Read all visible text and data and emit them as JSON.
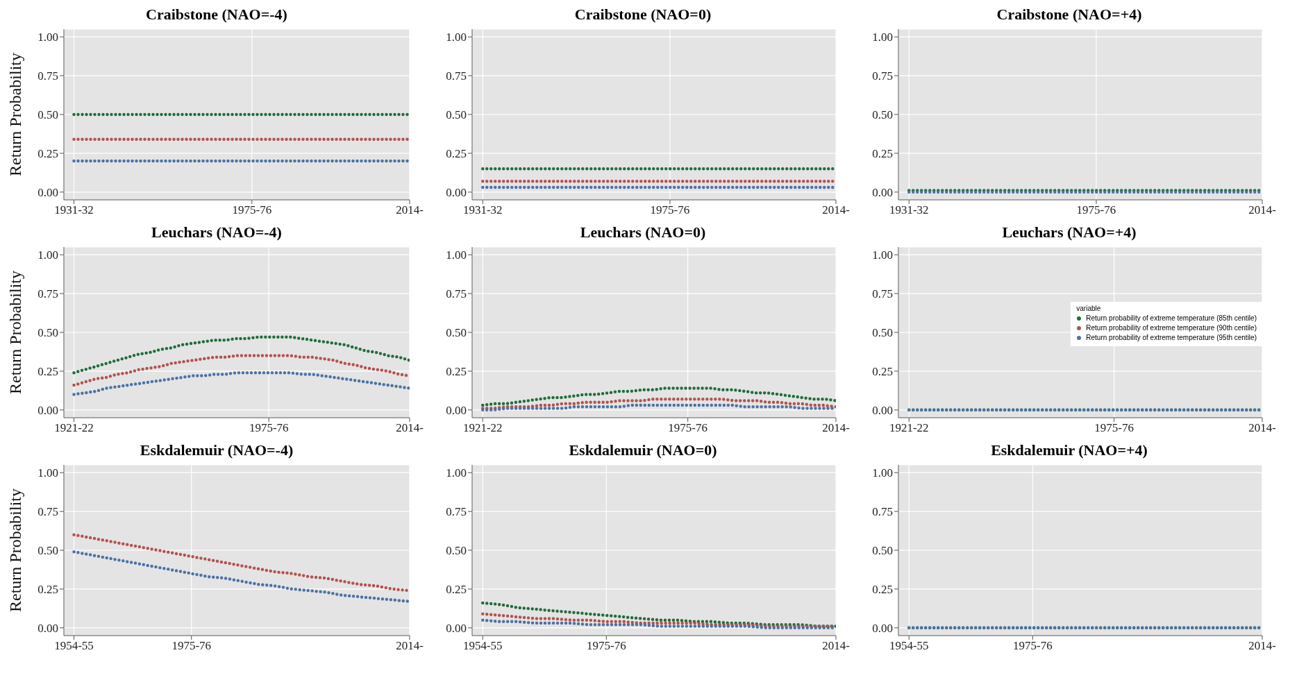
{
  "chart_data": [
    {
      "type": "line",
      "title": "Craibstone (NAO=-4)",
      "ylabel": "Return Probability",
      "line_style": "dotted",
      "grid": true,
      "ylim": [
        -0.05,
        1.05
      ],
      "yticks": [
        {
          "value": 0,
          "label": "0.00"
        },
        {
          "value": 0.25,
          "label": "0.25"
        },
        {
          "value": 0.5,
          "label": "0.50"
        },
        {
          "value": 0.75,
          "label": "0.75"
        },
        {
          "value": 1,
          "label": "1.00"
        }
      ],
      "categories": [
        "1931-32",
        null,
        null,
        null,
        null,
        null,
        null,
        null,
        null,
        null,
        null,
        null,
        null,
        null,
        null,
        null,
        null,
        null,
        null,
        null,
        null,
        null,
        null,
        null,
        null,
        null,
        null,
        null,
        null,
        null,
        null,
        null,
        null,
        null,
        null,
        null,
        null,
        null,
        null,
        null,
        null,
        null,
        null,
        null,
        "1975-76",
        null,
        null,
        null,
        null,
        null,
        null,
        null,
        null,
        null,
        null,
        null,
        null,
        null,
        null,
        null,
        null,
        null,
        null,
        null,
        null,
        null,
        null,
        null,
        null,
        null,
        null,
        null,
        null,
        null,
        null,
        null,
        null,
        null,
        null,
        null,
        null,
        null,
        null,
        "2014-"
      ],
      "series": [
        {
          "color": "#1f6e3a",
          "values": [
            0.5,
            0.5,
            0.5,
            0.5,
            0.5,
            0.5,
            0.5,
            0.5,
            0.5,
            0.5,
            0.5,
            0.5,
            0.5,
            0.5,
            0.5,
            0.5,
            0.5,
            0.5,
            0.5,
            0.5,
            0.5,
            0.5,
            0.5,
            0.5,
            0.5,
            0.5,
            0.5,
            0.5,
            0.5,
            0.5,
            0.5,
            0.5,
            0.5,
            0.5,
            0.5,
            0.5,
            0.5,
            0.5,
            0.5,
            0.5,
            0.5,
            0.5,
            0.5,
            0.5,
            0.5,
            0.5,
            0.5,
            0.5,
            0.5,
            0.5,
            0.5,
            0.5,
            0.5,
            0.5,
            0.5,
            0.5,
            0.5,
            0.5,
            0.5,
            0.5,
            0.5,
            0.5,
            0.5,
            0.5,
            0.5,
            0.5,
            0.5,
            0.5,
            0.5,
            0.5,
            0.5,
            0.5,
            0.5,
            0.5,
            0.5,
            0.5,
            0.5,
            0.5,
            0.5,
            0.5,
            0.5,
            0.5,
            0.5,
            0.5
          ]
        },
        {
          "color": "#b3524e",
          "values": [
            0.34,
            0.34,
            0.34,
            0.34,
            0.34,
            0.34,
            0.34,
            0.34,
            0.34,
            0.34,
            0.34,
            0.34,
            0.34,
            0.34,
            0.34,
            0.34,
            0.34,
            0.34,
            0.34,
            0.34,
            0.34,
            0.34,
            0.34,
            0.34,
            0.34,
            0.34,
            0.34,
            0.34,
            0.34,
            0.34,
            0.34,
            0.34,
            0.34,
            0.34,
            0.34,
            0.34,
            0.34,
            0.34,
            0.34,
            0.34,
            0.34,
            0.34,
            0.34,
            0.34,
            0.34,
            0.34,
            0.34,
            0.34,
            0.34,
            0.34,
            0.34,
            0.34,
            0.34,
            0.34,
            0.34,
            0.34,
            0.34,
            0.34,
            0.34,
            0.34,
            0.34,
            0.34,
            0.34,
            0.34,
            0.34,
            0.34,
            0.34,
            0.34,
            0.34,
            0.34,
            0.34,
            0.34,
            0.34,
            0.34,
            0.34,
            0.34,
            0.34,
            0.34,
            0.34,
            0.34,
            0.34,
            0.34,
            0.34,
            0.34
          ]
        },
        {
          "color": "#4a72a6",
          "values": [
            0.2,
            0.2,
            0.2,
            0.2,
            0.2,
            0.2,
            0.2,
            0.2,
            0.2,
            0.2,
            0.2,
            0.2,
            0.2,
            0.2,
            0.2,
            0.2,
            0.2,
            0.2,
            0.2,
            0.2,
            0.2,
            0.2,
            0.2,
            0.2,
            0.2,
            0.2,
            0.2,
            0.2,
            0.2,
            0.2,
            0.2,
            0.2,
            0.2,
            0.2,
            0.2,
            0.2,
            0.2,
            0.2,
            0.2,
            0.2,
            0.2,
            0.2,
            0.2,
            0.2,
            0.2,
            0.2,
            0.2,
            0.2,
            0.2,
            0.2,
            0.2,
            0.2,
            0.2,
            0.2,
            0.2,
            0.2,
            0.2,
            0.2,
            0.2,
            0.2,
            0.2,
            0.2,
            0.2,
            0.2,
            0.2,
            0.2,
            0.2,
            0.2,
            0.2,
            0.2,
            0.2,
            0.2,
            0.2,
            0.2,
            0.2,
            0.2,
            0.2,
            0.2,
            0.2,
            0.2,
            0.2,
            0.2,
            0.2,
            0.2
          ]
        }
      ]
    },
    {
      "type": "line",
      "title": "Craibstone (NAO=0)",
      "line_style": "dotted",
      "grid": true,
      "ylim": [
        -0.05,
        1.05
      ],
      "yticks": [
        {
          "value": 0,
          "label": "0.00"
        },
        {
          "value": 0.25,
          "label": "0.25"
        },
        {
          "value": 0.5,
          "label": "0.50"
        },
        {
          "value": 0.75,
          "label": "0.75"
        },
        {
          "value": 1,
          "label": "1.00"
        }
      ],
      "categories": [
        "1931-32",
        null,
        null,
        null,
        null,
        null,
        null,
        null,
        null,
        null,
        null,
        null,
        null,
        null,
        null,
        null,
        null,
        null,
        null,
        null,
        null,
        null,
        null,
        null,
        null,
        null,
        null,
        null,
        null,
        null,
        null,
        null,
        null,
        null,
        null,
        null,
        null,
        null,
        null,
        null,
        null,
        null,
        null,
        null,
        "1975-76",
        null,
        null,
        null,
        null,
        null,
        null,
        null,
        null,
        null,
        null,
        null,
        null,
        null,
        null,
        null,
        null,
        null,
        null,
        null,
        null,
        null,
        null,
        null,
        null,
        null,
        null,
        null,
        null,
        null,
        null,
        null,
        null,
        null,
        null,
        null,
        null,
        null,
        null,
        "2014-"
      ],
      "series": [
        {
          "color": "#1f6e3a",
          "values": [
            0.15,
            0.15,
            0.15,
            0.15,
            0.15,
            0.15,
            0.15,
            0.15,
            0.15,
            0.15,
            0.15,
            0.15,
            0.15,
            0.15,
            0.15,
            0.15,
            0.15,
            0.15,
            0.15,
            0.15,
            0.15,
            0.15,
            0.15,
            0.15,
            0.15,
            0.15,
            0.15,
            0.15,
            0.15,
            0.15,
            0.15,
            0.15,
            0.15,
            0.15,
            0.15,
            0.15,
            0.15,
            0.15,
            0.15,
            0.15,
            0.15,
            0.15,
            0.15,
            0.15,
            0.15,
            0.15,
            0.15,
            0.15,
            0.15,
            0.15,
            0.15,
            0.15,
            0.15,
            0.15,
            0.15,
            0.15,
            0.15,
            0.15,
            0.15,
            0.15,
            0.15,
            0.15,
            0.15,
            0.15,
            0.15,
            0.15,
            0.15,
            0.15,
            0.15,
            0.15,
            0.15,
            0.15,
            0.15,
            0.15,
            0.15,
            0.15,
            0.15,
            0.15,
            0.15,
            0.15,
            0.15,
            0.15,
            0.15,
            0.15
          ]
        },
        {
          "color": "#b3524e",
          "values": [
            0.07,
            0.07,
            0.07,
            0.07,
            0.07,
            0.07,
            0.07,
            0.07,
            0.07,
            0.07,
            0.07,
            0.07,
            0.07,
            0.07,
            0.07,
            0.07,
            0.07,
            0.07,
            0.07,
            0.07,
            0.07,
            0.07,
            0.07,
            0.07,
            0.07,
            0.07,
            0.07,
            0.07,
            0.07,
            0.07,
            0.07,
            0.07,
            0.07,
            0.07,
            0.07,
            0.07,
            0.07,
            0.07,
            0.07,
            0.07,
            0.07,
            0.07,
            0.07,
            0.07,
            0.07,
            0.07,
            0.07,
            0.07,
            0.07,
            0.07,
            0.07,
            0.07,
            0.07,
            0.07,
            0.07,
            0.07,
            0.07,
            0.07,
            0.07,
            0.07,
            0.07,
            0.07,
            0.07,
            0.07,
            0.07,
            0.07,
            0.07,
            0.07,
            0.07,
            0.07,
            0.07,
            0.07,
            0.07,
            0.07,
            0.07,
            0.07,
            0.07,
            0.07,
            0.07,
            0.07,
            0.07,
            0.07,
            0.07,
            0.07
          ]
        },
        {
          "color": "#4a72a6",
          "values": [
            0.03,
            0.03,
            0.03,
            0.03,
            0.03,
            0.03,
            0.03,
            0.03,
            0.03,
            0.03,
            0.03,
            0.03,
            0.03,
            0.03,
            0.03,
            0.03,
            0.03,
            0.03,
            0.03,
            0.03,
            0.03,
            0.03,
            0.03,
            0.03,
            0.03,
            0.03,
            0.03,
            0.03,
            0.03,
            0.03,
            0.03,
            0.03,
            0.03,
            0.03,
            0.03,
            0.03,
            0.03,
            0.03,
            0.03,
            0.03,
            0.03,
            0.03,
            0.03,
            0.03,
            0.03,
            0.03,
            0.03,
            0.03,
            0.03,
            0.03,
            0.03,
            0.03,
            0.03,
            0.03,
            0.03,
            0.03,
            0.03,
            0.03,
            0.03,
            0.03,
            0.03,
            0.03,
            0.03,
            0.03,
            0.03,
            0.03,
            0.03,
            0.03,
            0.03,
            0.03,
            0.03,
            0.03,
            0.03,
            0.03,
            0.03,
            0.03,
            0.03,
            0.03,
            0.03,
            0.03,
            0.03,
            0.03,
            0.03,
            0.03
          ]
        }
      ]
    },
    {
      "type": "line",
      "title": "Craibstone (NAO=+4)",
      "line_style": "dotted",
      "grid": true,
      "ylim": [
        -0.05,
        1.05
      ],
      "yticks": [
        {
          "value": 0,
          "label": "0.00"
        },
        {
          "value": 0.25,
          "label": "0.25"
        },
        {
          "value": 0.5,
          "label": "0.50"
        },
        {
          "value": 0.75,
          "label": "0.75"
        },
        {
          "value": 1,
          "label": "1.00"
        }
      ],
      "categories": [
        "1931-32",
        null,
        null,
        null,
        null,
        null,
        null,
        null,
        null,
        null,
        null,
        null,
        null,
        null,
        null,
        null,
        null,
        null,
        null,
        null,
        null,
        null,
        null,
        null,
        null,
        null,
        null,
        null,
        null,
        null,
        null,
        null,
        null,
        null,
        null,
        null,
        null,
        null,
        null,
        null,
        null,
        null,
        null,
        null,
        "1975-76",
        null,
        null,
        null,
        null,
        null,
        null,
        null,
        null,
        null,
        null,
        null,
        null,
        null,
        null,
        null,
        null,
        null,
        null,
        null,
        null,
        null,
        null,
        null,
        null,
        null,
        null,
        null,
        null,
        null,
        null,
        null,
        null,
        null,
        null,
        null,
        null,
        null,
        null,
        "2014-"
      ],
      "series": [
        {
          "color": "#1f6e3a",
          "values": [
            0.01,
            0.01,
            0.01,
            0.01,
            0.01,
            0.01,
            0.01,
            0.01,
            0.01,
            0.01,
            0.01,
            0.01,
            0.01,
            0.01,
            0.01,
            0.01,
            0.01,
            0.01,
            0.01,
            0.01,
            0.01,
            0.01,
            0.01,
            0.01,
            0.01,
            0.01,
            0.01,
            0.01,
            0.01,
            0.01,
            0.01,
            0.01,
            0.01,
            0.01,
            0.01,
            0.01,
            0.01,
            0.01,
            0.01,
            0.01,
            0.01,
            0.01,
            0.01,
            0.01,
            0.01,
            0.01,
            0.01,
            0.01,
            0.01,
            0.01,
            0.01,
            0.01,
            0.01,
            0.01,
            0.01,
            0.01,
            0.01,
            0.01,
            0.01,
            0.01,
            0.01,
            0.01,
            0.01,
            0.01,
            0.01,
            0.01,
            0.01,
            0.01,
            0.01,
            0.01,
            0.01,
            0.01,
            0.01,
            0.01,
            0.01,
            0.01,
            0.01,
            0.01,
            0.01,
            0.01,
            0.01,
            0.01,
            0.01,
            0.01
          ]
        },
        {
          "color": "#b3524e",
          "values": [
            null,
            null,
            null,
            null,
            null,
            null,
            null,
            null,
            null,
            null,
            null,
            null,
            null,
            null,
            null,
            null,
            null,
            null,
            null,
            null,
            null,
            null,
            null,
            null,
            null,
            null,
            null,
            null,
            null,
            null,
            null,
            null,
            null,
            null,
            null,
            null,
            null,
            null,
            null,
            null,
            null,
            null,
            null,
            null,
            null,
            null,
            null,
            null,
            null,
            null,
            null,
            null,
            null,
            null,
            null,
            null,
            null,
            null,
            null,
            null,
            null,
            null,
            null,
            null,
            null,
            null,
            null,
            null,
            null,
            null,
            null,
            null,
            null,
            null,
            null,
            null,
            null,
            null,
            null,
            null,
            null,
            null,
            null,
            null
          ]
        },
        {
          "color": "#4a72a6",
          "values": [
            0,
            0,
            0,
            0,
            0,
            0,
            0,
            0,
            0,
            0,
            0,
            0,
            0,
            0,
            0,
            0,
            0,
            0,
            0,
            0,
            0,
            0,
            0,
            0,
            0,
            0,
            0,
            0,
            0,
            0,
            0,
            0,
            0,
            0,
            0,
            0,
            0,
            0,
            0,
            0,
            0,
            0,
            0,
            0,
            0,
            0,
            0,
            0,
            0,
            0,
            0,
            0,
            0,
            0,
            0,
            0,
            0,
            0,
            0,
            0,
            0,
            0,
            0,
            0,
            0,
            0,
            0,
            0,
            0,
            0,
            0,
            0,
            0,
            0,
            0,
            0,
            0,
            0,
            0,
            0,
            0,
            0,
            0,
            0
          ]
        }
      ]
    },
    {
      "type": "line",
      "title": "Leuchars (NAO=-4)",
      "ylabel": "Return Probability",
      "line_style": "dotted",
      "grid": true,
      "ylim": [
        -0.05,
        1.05
      ],
      "yticks": [
        {
          "value": 0,
          "label": "0.00"
        },
        {
          "value": 0.25,
          "label": "0.25"
        },
        {
          "value": 0.5,
          "label": "0.50"
        },
        {
          "value": 0.75,
          "label": "0.75"
        },
        {
          "value": 1,
          "label": "1.00"
        }
      ],
      "categories": [
        "1921-22",
        null,
        null,
        null,
        null,
        null,
        null,
        null,
        null,
        null,
        null,
        null,
        null,
        null,
        null,
        null,
        null,
        null,
        "1975-76",
        null,
        null,
        null,
        null,
        null,
        null,
        null,
        null,
        null,
        null,
        null,
        null,
        "2014-"
      ],
      "series": [
        {
          "color": "#1f6e3a",
          "values": [
            0.24,
            0.26,
            0.28,
            0.3,
            0.32,
            0.34,
            0.36,
            0.37,
            0.39,
            0.4,
            0.42,
            0.43,
            0.44,
            0.45,
            0.45,
            0.46,
            0.46,
            0.47,
            0.47,
            0.47,
            0.47,
            0.46,
            0.45,
            0.44,
            0.43,
            0.42,
            0.4,
            0.38,
            0.37,
            0.35,
            0.34,
            0.32
          ]
        },
        {
          "color": "#b3524e",
          "values": [
            0.16,
            0.18,
            0.2,
            0.21,
            0.23,
            0.24,
            0.26,
            0.27,
            0.28,
            0.3,
            0.31,
            0.32,
            0.33,
            0.34,
            0.34,
            0.35,
            0.35,
            0.35,
            0.35,
            0.35,
            0.35,
            0.34,
            0.34,
            0.33,
            0.32,
            0.3,
            0.29,
            0.27,
            0.26,
            0.25,
            0.23,
            0.22
          ]
        },
        {
          "color": "#4a72a6",
          "values": [
            0.1,
            0.11,
            0.12,
            0.14,
            0.15,
            0.16,
            0.17,
            0.18,
            0.19,
            0.2,
            0.21,
            0.22,
            0.22,
            0.23,
            0.23,
            0.24,
            0.24,
            0.24,
            0.24,
            0.24,
            0.24,
            0.23,
            0.23,
            0.22,
            0.21,
            0.2,
            0.19,
            0.18,
            0.17,
            0.16,
            0.15,
            0.14
          ]
        }
      ]
    },
    {
      "type": "line",
      "title": "Leuchars (NAO=0)",
      "line_style": "dotted",
      "grid": true,
      "ylim": [
        -0.05,
        1.05
      ],
      "yticks": [
        {
          "value": 0,
          "label": "0.00"
        },
        {
          "value": 0.25,
          "label": "0.25"
        },
        {
          "value": 0.5,
          "label": "0.50"
        },
        {
          "value": 0.75,
          "label": "0.75"
        },
        {
          "value": 1,
          "label": "1.00"
        }
      ],
      "categories": [
        "1921-22",
        null,
        null,
        null,
        null,
        null,
        null,
        null,
        null,
        null,
        null,
        null,
        null,
        null,
        null,
        null,
        null,
        null,
        "1975-76",
        null,
        null,
        null,
        null,
        null,
        null,
        null,
        null,
        null,
        null,
        null,
        null,
        "2014-"
      ],
      "series": [
        {
          "color": "#1f6e3a",
          "values": [
            0.03,
            0.04,
            0.04,
            0.05,
            0.06,
            0.07,
            0.08,
            0.08,
            0.09,
            0.1,
            0.1,
            0.11,
            0.12,
            0.12,
            0.13,
            0.13,
            0.14,
            0.14,
            0.14,
            0.14,
            0.14,
            0.13,
            0.13,
            0.12,
            0.11,
            0.11,
            0.1,
            0.09,
            0.08,
            0.07,
            0.07,
            0.06
          ]
        },
        {
          "color": "#b3524e",
          "values": [
            0.01,
            0.01,
            0.02,
            0.02,
            0.02,
            0.03,
            0.03,
            0.04,
            0.04,
            0.05,
            0.05,
            0.05,
            0.06,
            0.06,
            0.06,
            0.07,
            0.07,
            0.07,
            0.07,
            0.07,
            0.07,
            0.07,
            0.06,
            0.06,
            0.06,
            0.05,
            0.05,
            0.04,
            0.04,
            0.03,
            0.03,
            0.02
          ]
        },
        {
          "color": "#4a72a6",
          "values": [
            0.0,
            0.0,
            0.01,
            0.01,
            0.01,
            0.01,
            0.01,
            0.01,
            0.02,
            0.02,
            0.02,
            0.02,
            0.02,
            0.03,
            0.03,
            0.03,
            0.03,
            0.03,
            0.03,
            0.03,
            0.03,
            0.03,
            0.03,
            0.02,
            0.02,
            0.02,
            0.02,
            0.02,
            0.01,
            0.01,
            0.01,
            0.01
          ]
        }
      ]
    },
    {
      "type": "line",
      "title": "Leuchars (NAO=+4)",
      "legend_title": "variable",
      "legend": "right",
      "line_style": "dotted",
      "grid": true,
      "ylim": [
        -0.05,
        1.05
      ],
      "yticks": [
        {
          "value": 0,
          "label": "0.00"
        },
        {
          "value": 0.25,
          "label": "0.25"
        },
        {
          "value": 0.5,
          "label": "0.50"
        },
        {
          "value": 0.75,
          "label": "0.75"
        },
        {
          "value": 1,
          "label": "1.00"
        }
      ],
      "categories": [
        "1921-22",
        null,
        null,
        null,
        null,
        null,
        null,
        null,
        null,
        null,
        null,
        null,
        null,
        null,
        null,
        null,
        null,
        null,
        "1975-76",
        null,
        null,
        null,
        null,
        null,
        null,
        null,
        null,
        null,
        null,
        null,
        null,
        "2014-"
      ],
      "series": [
        {
          "name": "Return probability of extreme temperature (85th centile)",
          "color": "#1f6e3a",
          "values": [
            0,
            0,
            0,
            0,
            0,
            0,
            0,
            0,
            0,
            0,
            0,
            0,
            0,
            0,
            0,
            0,
            0,
            0,
            0,
            0,
            0,
            0,
            0,
            0,
            0,
            0,
            0,
            0,
            0,
            0,
            0,
            0
          ]
        },
        {
          "name": "Return probability of extreme temperature (90th centile)",
          "color": "#b3524e",
          "values": [
            null,
            null,
            null,
            null,
            null,
            null,
            null,
            null,
            null,
            null,
            null,
            null,
            null,
            null,
            null,
            null,
            null,
            null,
            null,
            null,
            null,
            null,
            null,
            null,
            null,
            null,
            null,
            null,
            null,
            null,
            null,
            null
          ]
        },
        {
          "name": "Return probability of extreme temperature (95th centile)",
          "color": "#4a72a6",
          "values": [
            0,
            0,
            0,
            0,
            0,
            0,
            0,
            0,
            0,
            0,
            0,
            0,
            0,
            0,
            0,
            0,
            0,
            0,
            0,
            0,
            0,
            0,
            0,
            0,
            0,
            0,
            0,
            0,
            0,
            0,
            0,
            0
          ]
        }
      ]
    },
    {
      "type": "line",
      "title": "Eskdalemuir (NAO=-4)",
      "ylabel": "Return Probability",
      "line_style": "dotted",
      "grid": true,
      "ylim": [
        -0.05,
        1.05
      ],
      "yticks": [
        {
          "value": 0,
          "label": "0.00"
        },
        {
          "value": 0.25,
          "label": "0.25"
        },
        {
          "value": 0.5,
          "label": "0.50"
        },
        {
          "value": 0.75,
          "label": "0.75"
        },
        {
          "value": 1,
          "label": "1.00"
        }
      ],
      "categories": [
        "1954-55",
        null,
        null,
        null,
        null,
        null,
        null,
        "1975-76",
        null,
        null,
        null,
        null,
        null,
        null,
        null,
        null,
        null,
        null,
        null,
        null,
        "2014-"
      ],
      "series": [
        {
          "color": "#b3524e",
          "values": [
            0.6,
            0.58,
            0.56,
            0.54,
            0.52,
            0.5,
            0.48,
            0.46,
            0.44,
            0.42,
            0.4,
            0.38,
            0.36,
            0.35,
            0.33,
            0.32,
            0.3,
            0.28,
            0.27,
            0.25,
            0.24
          ]
        },
        {
          "color": "#4a72a6",
          "values": [
            0.49,
            0.47,
            0.45,
            0.43,
            0.41,
            0.39,
            0.37,
            0.35,
            0.33,
            0.32,
            0.3,
            0.28,
            0.27,
            0.25,
            0.24,
            0.23,
            0.21,
            0.2,
            0.19,
            0.18,
            0.17
          ]
        }
      ]
    },
    {
      "type": "line",
      "title": "Eskdalemuir (NAO=0)",
      "line_style": "dotted",
      "grid": true,
      "ylim": [
        -0.05,
        1.05
      ],
      "yticks": [
        {
          "value": 0,
          "label": "0.00"
        },
        {
          "value": 0.25,
          "label": "0.25"
        },
        {
          "value": 0.5,
          "label": "0.50"
        },
        {
          "value": 0.75,
          "label": "0.75"
        },
        {
          "value": 1,
          "label": "1.00"
        }
      ],
      "categories": [
        "1954-55",
        null,
        null,
        null,
        null,
        null,
        null,
        "1975-76",
        null,
        null,
        null,
        null,
        null,
        null,
        null,
        null,
        null,
        null,
        null,
        null,
        "2014-"
      ],
      "series": [
        {
          "color": "#1f6e3a",
          "values": [
            0.16,
            0.15,
            0.13,
            0.12,
            0.11,
            0.1,
            0.09,
            0.08,
            0.07,
            0.06,
            0.05,
            0.05,
            0.04,
            0.04,
            0.03,
            0.03,
            0.02,
            0.02,
            0.02,
            0.01,
            0.01
          ]
        },
        {
          "color": "#b3524e",
          "values": [
            0.09,
            0.08,
            0.07,
            0.06,
            0.06,
            0.05,
            0.05,
            0.04,
            0.04,
            0.03,
            0.03,
            0.03,
            0.03,
            0.02,
            0.02,
            0.02,
            0.01,
            0.01,
            0.01,
            0.01,
            0.01
          ]
        },
        {
          "color": "#4a72a6",
          "values": [
            0.05,
            0.04,
            0.04,
            0.03,
            0.03,
            0.03,
            0.02,
            0.02,
            0.02,
            0.02,
            0.01,
            0.01,
            0.01,
            0.01,
            0.01,
            0.01,
            0.0,
            0.0,
            0.0,
            0.0,
            0.0
          ]
        }
      ]
    },
    {
      "type": "line",
      "title": "Eskdalemuir (NAO=+4)",
      "line_style": "dotted",
      "grid": true,
      "ylim": [
        -0.05,
        1.05
      ],
      "yticks": [
        {
          "value": 0,
          "label": "0.00"
        },
        {
          "value": 0.25,
          "label": "0.25"
        },
        {
          "value": 0.5,
          "label": "0.50"
        },
        {
          "value": 0.75,
          "label": "0.75"
        },
        {
          "value": 1,
          "label": "1.00"
        }
      ],
      "categories": [
        "1954-55",
        null,
        null,
        null,
        null,
        null,
        null,
        "1975-76",
        null,
        null,
        null,
        null,
        null,
        null,
        null,
        null,
        null,
        null,
        null,
        null,
        "2014-"
      ],
      "series": [
        {
          "color": "#1f6e3a",
          "values": [
            0,
            0,
            0,
            0,
            0,
            0,
            0,
            0,
            0,
            0,
            0,
            0,
            0,
            0,
            0,
            0,
            0,
            0,
            0,
            0,
            0
          ]
        },
        {
          "color": "#b3524e",
          "values": [
            null,
            null,
            null,
            null,
            null,
            null,
            null,
            null,
            null,
            null,
            null,
            null,
            null,
            null,
            null,
            null,
            null,
            null,
            null,
            null,
            null
          ]
        },
        {
          "color": "#4a72a6",
          "values": [
            0,
            0,
            0,
            0,
            0,
            0,
            0,
            0,
            0,
            0,
            0,
            0,
            0,
            0,
            0,
            0,
            0,
            0,
            0,
            0,
            0
          ]
        }
      ]
    }
  ]
}
